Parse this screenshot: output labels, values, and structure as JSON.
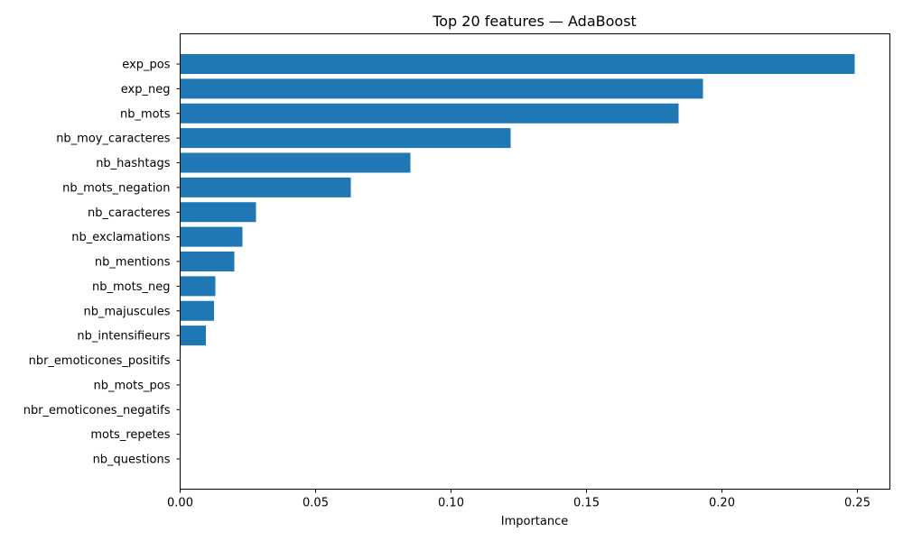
{
  "chart_data": {
    "type": "bar",
    "orientation": "horizontal",
    "title": "Top 20 features — AdaBoost",
    "xlabel": "Importance",
    "ylabel": "",
    "xlim": [
      0,
      0.262
    ],
    "xticks": [
      0.0,
      0.05,
      0.1,
      0.15,
      0.2,
      0.25
    ],
    "xtick_labels": [
      "0.00",
      "0.05",
      "0.10",
      "0.15",
      "0.20",
      "0.25"
    ],
    "grid": false,
    "color": "#1f77b4",
    "categories": [
      "exp_pos",
      "exp_neg",
      "nb_mots",
      "nb_moy_caracteres",
      "nb_hashtags",
      "nb_mots_negation",
      "nb_caracteres",
      "nb_exclamations",
      "nb_mentions",
      "nb_mots_neg",
      "nb_majuscules",
      "nb_intensifieurs",
      "nbr_emoticones_positifs",
      "nb_mots_pos",
      "nbr_emoticones_negatifs",
      "mots_repetes",
      "nb_questions"
    ],
    "values": [
      0.249,
      0.193,
      0.184,
      0.122,
      0.085,
      0.063,
      0.028,
      0.023,
      0.02,
      0.013,
      0.0125,
      0.0095,
      0,
      0,
      0,
      0,
      0
    ]
  }
}
